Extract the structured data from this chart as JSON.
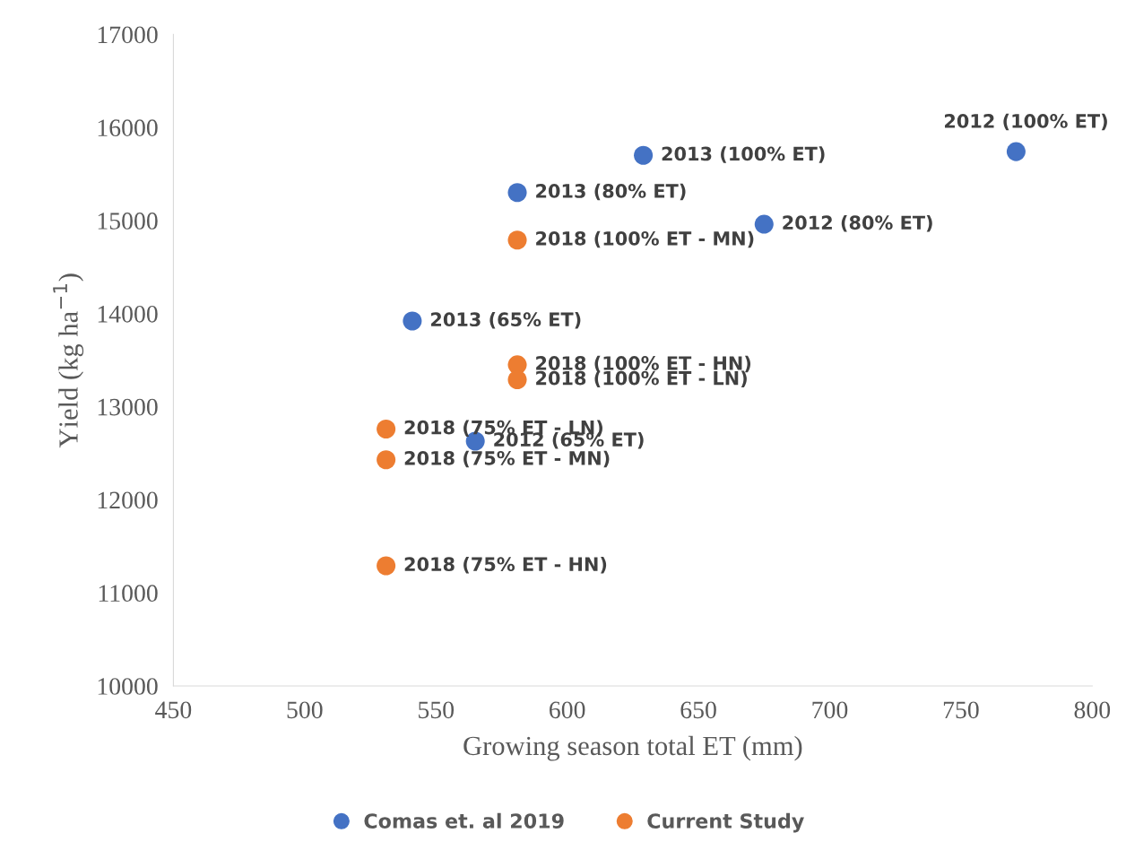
{
  "chart_data": {
    "type": "scatter",
    "xlabel": "Growing season total ET (mm)",
    "ylabel": "Yield (kg ha$^{−1}$)",
    "xlim": [
      450,
      800
    ],
    "xticks": [
      450,
      500,
      550,
      600,
      650,
      700,
      750,
      800
    ],
    "ylim": [
      10000,
      17000
    ],
    "yticks": [
      10000,
      11000,
      12000,
      13000,
      14000,
      15000,
      16000,
      17000
    ],
    "grid": false,
    "legend": "bottom",
    "marker": "circle",
    "series": [
      {
        "name": "Comas et. al 2019",
        "color": "#4472c4",
        "x": [
          629,
          581,
          675,
          771,
          541,
          565
        ],
        "values": [
          15700,
          15300,
          14960,
          15740,
          13920,
          12630
        ]
      },
      {
        "name": "Current Study",
        "color": "#ed7d31",
        "x": [
          581,
          581,
          581,
          531,
          531,
          531
        ],
        "values": [
          14790,
          13450,
          13290,
          12760,
          12430,
          11290
        ]
      }
    ],
    "annotations": [
      {
        "text": "2013 (100% ET)",
        "x": 629,
        "y": 15700
      },
      {
        "text": "2013 (80% ET)",
        "x": 581,
        "y": 15300
      },
      {
        "text": "2012 (80% ET)",
        "x": 675,
        "y": 14960
      },
      {
        "text": "2012 (100% ET)",
        "x": 771,
        "y": 15740
      },
      {
        "text": "2013 (65% ET)",
        "x": 541,
        "y": 13920
      },
      {
        "text": "2012 (65% ET)",
        "x": 565,
        "y": 12630
      },
      {
        "text": "2018 (100% ET - MN)",
        "x": 581,
        "y": 14790
      },
      {
        "text": "2018 (100% ET - HN)",
        "x": 581,
        "y": 13450
      },
      {
        "text": "2018 (100% ET - LN)",
        "x": 581,
        "y": 13290
      },
      {
        "text": "2018 (75% ET - LN)",
        "x": 531,
        "y": 12760
      },
      {
        "text": "2018 (75% ET - MN)",
        "x": 531,
        "y": 12430
      },
      {
        "text": "2018 (75% ET - HN)",
        "x": 531,
        "y": 11290
      }
    ]
  }
}
